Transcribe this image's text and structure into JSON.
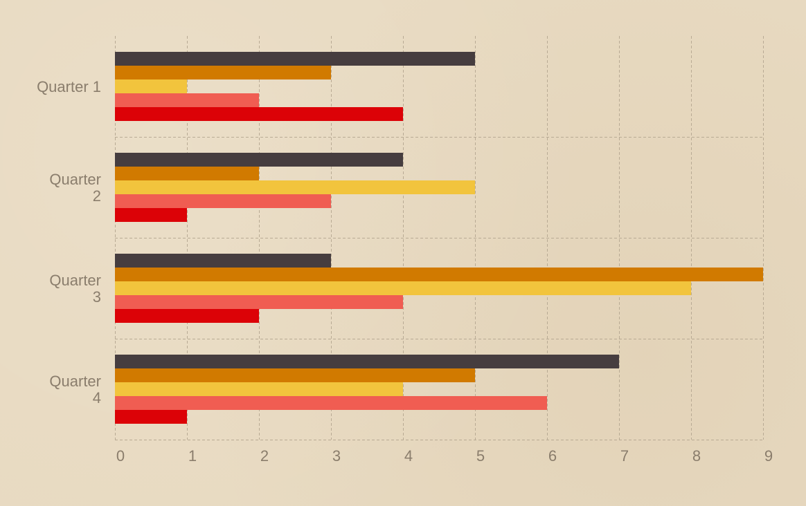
{
  "chart_data": {
    "type": "bar",
    "orientation": "horizontal",
    "categories": [
      [
        "Quarter 1"
      ],
      [
        "Quarter",
        "2"
      ],
      [
        "Quarter",
        "3"
      ],
      [
        "Quarter",
        "4"
      ]
    ],
    "series": [
      {
        "color": "#463d3f",
        "values": [
          5,
          4,
          3,
          7
        ]
      },
      {
        "color": "#d17a00",
        "values": [
          3,
          2,
          9,
          5
        ]
      },
      {
        "color": "#f2c43d",
        "values": [
          1,
          5,
          8,
          4
        ]
      },
      {
        "color": "#f05d52",
        "values": [
          2,
          3,
          4,
          6
        ]
      },
      {
        "color": "#dc0207",
        "values": [
          4,
          1,
          2,
          1
        ]
      }
    ],
    "x_ticks": [
      "0",
      "1",
      "2",
      "3",
      "4",
      "5",
      "6",
      "7",
      "8",
      "9"
    ],
    "xlim": [
      0,
      9
    ],
    "grid": true,
    "legend": "none",
    "title": "",
    "xlabel": "",
    "ylabel": ""
  }
}
